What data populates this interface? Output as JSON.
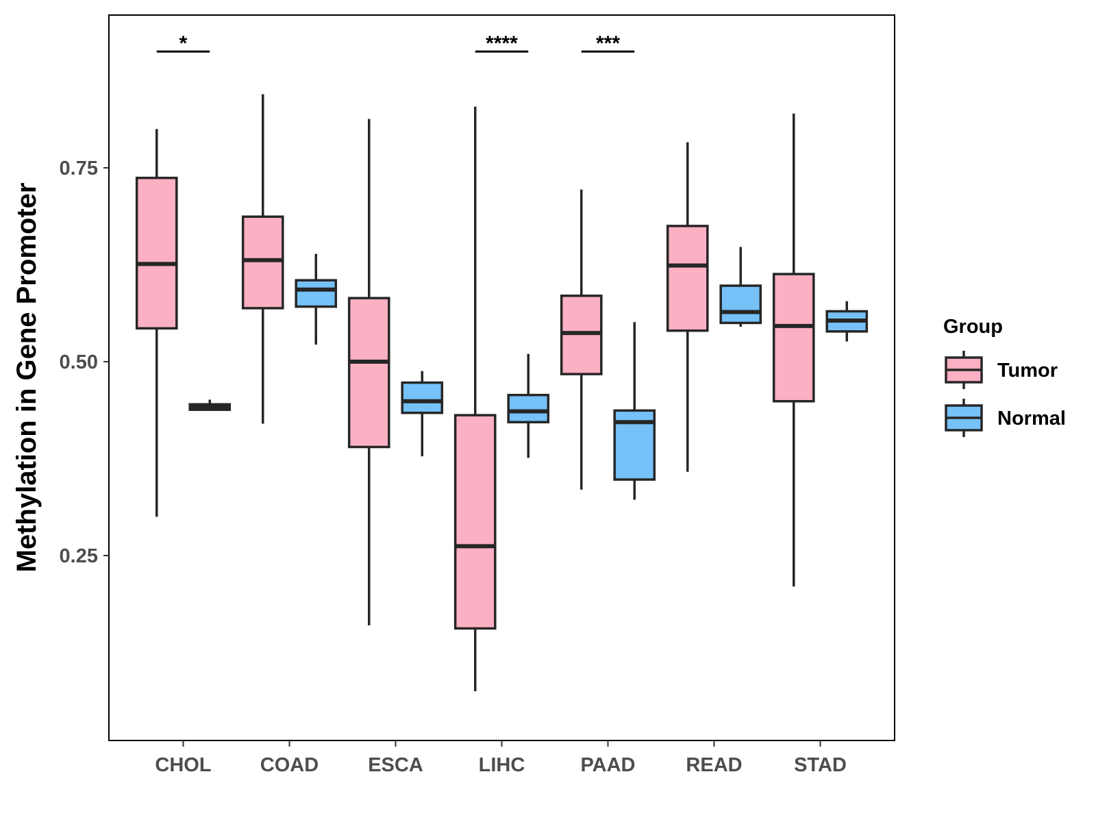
{
  "chart_data": {
    "type": "boxplot",
    "title": "",
    "xlabel": "",
    "ylabel": "Methylation in Gene Promoter",
    "ylim": [
      0.03,
      0.96
    ],
    "yticks": [
      0.25,
      0.5,
      0.75
    ],
    "ytick_labels": [
      "0.25",
      "0.50",
      "0.75"
    ],
    "categories": [
      "CHOL",
      "COAD",
      "ESCA",
      "LIHC",
      "PAAD",
      "READ",
      "STAD"
    ],
    "legend": {
      "title": "Group",
      "position": "right",
      "entries": [
        {
          "name": "Tumor",
          "color": "#FBB0C3"
        },
        {
          "name": "Normal",
          "color": "#76C1F8"
        }
      ]
    },
    "series": [
      {
        "name": "Tumor",
        "color": "#FBB0C3",
        "boxes": [
          {
            "category": "CHOL",
            "min": 0.3,
            "q1": 0.543,
            "median": 0.626,
            "q3": 0.737,
            "max": 0.8
          },
          {
            "category": "COAD",
            "min": 0.42,
            "q1": 0.569,
            "median": 0.631,
            "q3": 0.687,
            "max": 0.845
          },
          {
            "category": "ESCA",
            "min": 0.16,
            "q1": 0.39,
            "median": 0.5,
            "q3": 0.582,
            "max": 0.813
          },
          {
            "category": "LIHC",
            "min": 0.075,
            "q1": 0.156,
            "median": 0.262,
            "q3": 0.431,
            "max": 0.829
          },
          {
            "category": "PAAD",
            "min": 0.335,
            "q1": 0.484,
            "median": 0.537,
            "q3": 0.585,
            "max": 0.722
          },
          {
            "category": "READ",
            "min": 0.358,
            "q1": 0.54,
            "median": 0.624,
            "q3": 0.675,
            "max": 0.783
          },
          {
            "category": "STAD",
            "min": 0.21,
            "q1": 0.449,
            "median": 0.546,
            "q3": 0.613,
            "max": 0.82
          }
        ]
      },
      {
        "name": "Normal",
        "color": "#76C1F8",
        "boxes": [
          {
            "category": "CHOL",
            "min": 0.437,
            "q1": 0.438,
            "median": 0.441,
            "q3": 0.445,
            "max": 0.451
          },
          {
            "category": "COAD",
            "min": 0.522,
            "q1": 0.571,
            "median": 0.593,
            "q3": 0.605,
            "max": 0.639
          },
          {
            "category": "ESCA",
            "min": 0.378,
            "q1": 0.434,
            "median": 0.449,
            "q3": 0.473,
            "max": 0.488
          },
          {
            "category": "LIHC",
            "min": 0.376,
            "q1": 0.422,
            "median": 0.436,
            "q3": 0.457,
            "max": 0.51
          },
          {
            "category": "PAAD",
            "min": 0.322,
            "q1": 0.348,
            "median": 0.422,
            "q3": 0.437,
            "max": 0.551
          },
          {
            "category": "READ",
            "min": 0.545,
            "q1": 0.55,
            "median": 0.564,
            "q3": 0.598,
            "max": 0.648
          },
          {
            "category": "STAD",
            "min": 0.526,
            "q1": 0.539,
            "median": 0.553,
            "q3": 0.565,
            "max": 0.578
          }
        ]
      }
    ],
    "annotations": [
      {
        "category": "CHOL",
        "label": "*",
        "y": 0.9
      },
      {
        "category": "LIHC",
        "label": "****",
        "y": 0.9
      },
      {
        "category": "PAAD",
        "label": "***",
        "y": 0.9
      }
    ],
    "grid": false
  }
}
